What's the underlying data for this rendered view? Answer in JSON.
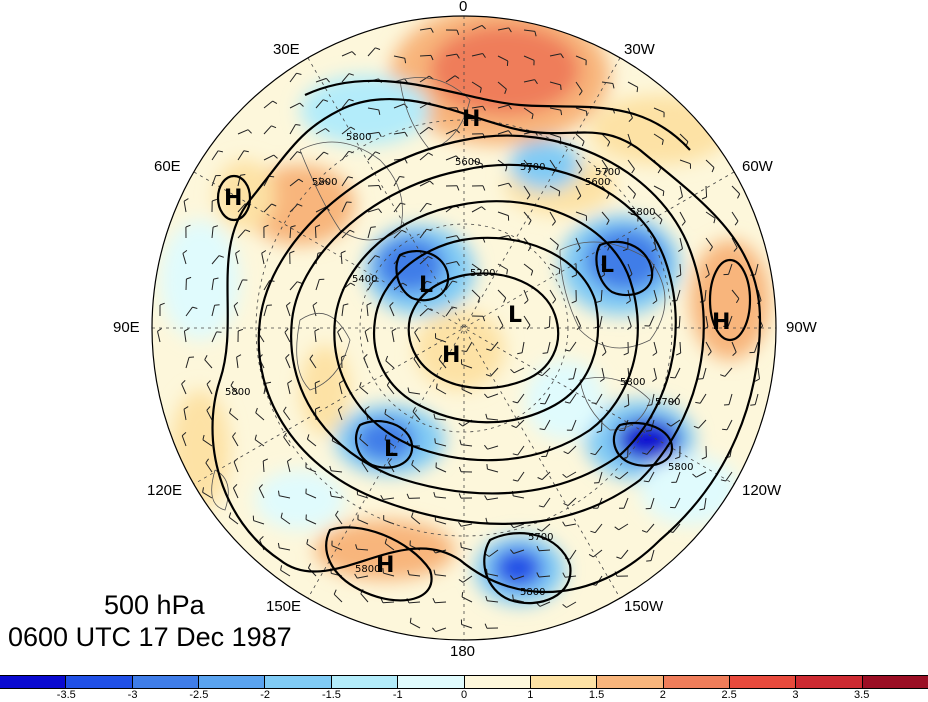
{
  "figure": {
    "level_label": "500 hPa",
    "time_label": "0600 UTC 17 Dec 1987"
  },
  "longitude_labels": {
    "top": "0",
    "bottom": "180",
    "right_top": "30W",
    "right_upper": "60W",
    "right_mid": "90W",
    "right_lower": "120W",
    "right_bottom": "150W",
    "left_top": "30E",
    "left_upper": "60E",
    "left_mid": "90E",
    "left_lower": "120E",
    "left_bottom": "150E"
  },
  "pressure_centers": [
    {
      "label": "H"
    },
    {
      "label": "H"
    },
    {
      "label": "H"
    },
    {
      "label": "H"
    },
    {
      "label": "H"
    },
    {
      "label": "L"
    },
    {
      "label": "L"
    },
    {
      "label": "L"
    },
    {
      "label": "L"
    }
  ],
  "contour_labels": [
    "5800",
    "5700",
    "5600",
    "5400",
    "5200",
    "5800",
    "5800",
    "5700",
    "5600",
    "5800",
    "5700",
    "5800",
    "5800",
    "5800",
    "5700",
    "5800"
  ],
  "colorbar": {
    "colors": [
      "#0a0ad0",
      "#2050e6",
      "#3f7de8",
      "#5aa3ef",
      "#80cbf5",
      "#b3ecfa",
      "#e0fbfd",
      "#fdf7db",
      "#fde2a5",
      "#f8b57c",
      "#ef7d5a",
      "#e84a3c",
      "#cd2a31",
      "#9b0e24"
    ],
    "tick_labels": [
      "-3.5",
      "-3",
      "-2.5",
      "-2",
      "-1.5",
      "-1",
      "0",
      "1",
      "1.5",
      "2",
      "2.5",
      "3",
      "3.5"
    ]
  }
}
